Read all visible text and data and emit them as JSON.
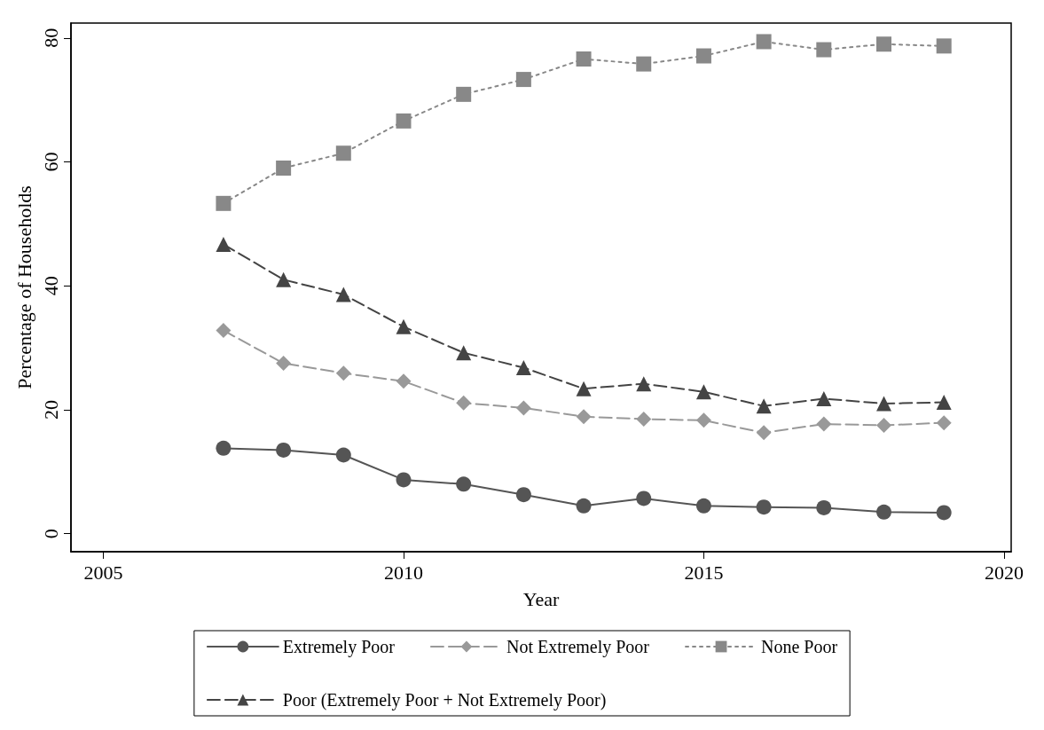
{
  "chart_data": {
    "type": "line",
    "xlabel": "Year",
    "ylabel": "Percentage of Households",
    "x": [
      2007,
      2008,
      2009,
      2010,
      2011,
      2012,
      2013,
      2014,
      2015,
      2016,
      2017,
      2018,
      2019
    ],
    "xlim": [
      2004.46,
      2020.12
    ],
    "xticks": [
      2005,
      2010,
      2015,
      2020
    ],
    "ylim": [
      -2.9,
      82.4
    ],
    "yticks": [
      0,
      20,
      40,
      60,
      80
    ],
    "grid": false,
    "legend": "bottom",
    "series": [
      {
        "name": "Extremely Poor",
        "color": "#555555",
        "marker": "circle",
        "line_style": "solid",
        "values": [
          13.8,
          13.5,
          12.7,
          8.7,
          8.0,
          6.3,
          4.5,
          5.7,
          4.5,
          4.3,
          4.2,
          3.5,
          3.4
        ]
      },
      {
        "name": "Not Extremely Poor",
        "color": "#999999",
        "marker": "diamond",
        "line_style": "dashed",
        "values": [
          32.8,
          27.5,
          25.9,
          24.6,
          21.1,
          20.3,
          18.9,
          18.5,
          18.3,
          16.3,
          17.7,
          17.5,
          17.9
        ]
      },
      {
        "name": "None Poor",
        "color": "#888888",
        "marker": "square",
        "line_style": "dotted",
        "values": [
          53.3,
          59.0,
          61.4,
          66.6,
          70.9,
          73.3,
          76.6,
          75.8,
          77.1,
          79.4,
          78.1,
          79.0,
          78.7
        ]
      },
      {
        "name": "Poor (Extremely Poor + Not Extremely Poor)",
        "color": "#444444",
        "marker": "triangle",
        "line_style": "dashed",
        "values": [
          46.7,
          41.0,
          38.6,
          33.4,
          29.2,
          26.8,
          23.4,
          24.2,
          22.9,
          20.6,
          21.8,
          21.0,
          21.2
        ]
      }
    ]
  }
}
